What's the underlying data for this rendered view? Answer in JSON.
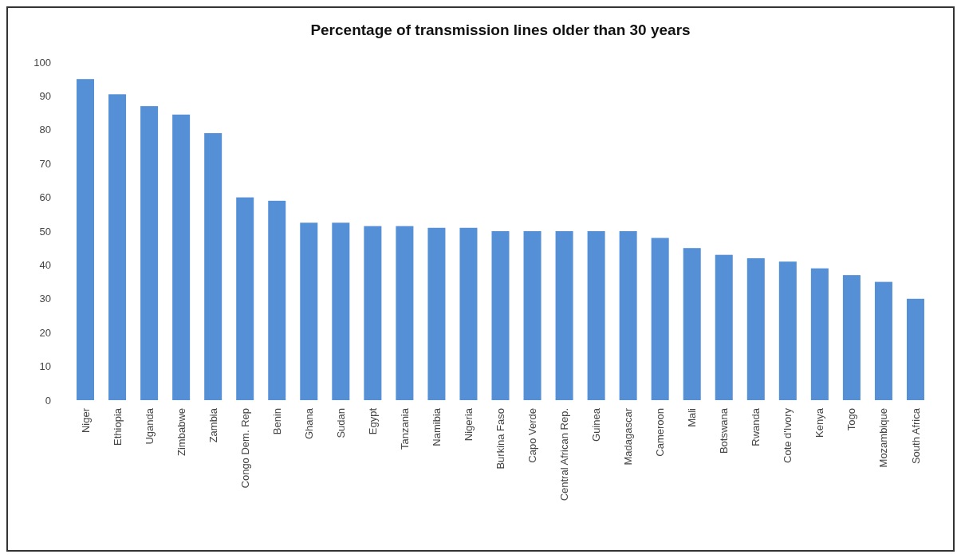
{
  "chart_data": {
    "type": "bar",
    "title": "Percentage of transmission lines older than 30 years",
    "categories": [
      "Niger",
      "Ethiopia",
      "Uganda",
      "Zimbabwe",
      "Zambia",
      "Congo Dem. Rep",
      "Benin",
      "Ghana",
      "Sudan",
      "Egypt",
      "Tanzania",
      "Namibia",
      "Nigeria",
      "Burkina Faso",
      "Capo Verde",
      "Central African Rep.",
      "Guinea",
      "Madagascar",
      "Cameroon",
      "Mali",
      "Botswana",
      "Rwanda",
      "Cote d'Ivory",
      "Kenya",
      "Togo",
      "Mozambique",
      "South Africa"
    ],
    "values": [
      95,
      90.5,
      87,
      84.5,
      79,
      60,
      59,
      52.5,
      52.5,
      51.5,
      51.5,
      51,
      51,
      50,
      50,
      50,
      50,
      50,
      48,
      45,
      43,
      42,
      41,
      39,
      37,
      35,
      30
    ],
    "color": "#5590d6",
    "ylim": [
      0,
      100
    ],
    "yticks": [
      0,
      10,
      20,
      30,
      40,
      50,
      60,
      70,
      80,
      90,
      100
    ],
    "grid": false
  }
}
